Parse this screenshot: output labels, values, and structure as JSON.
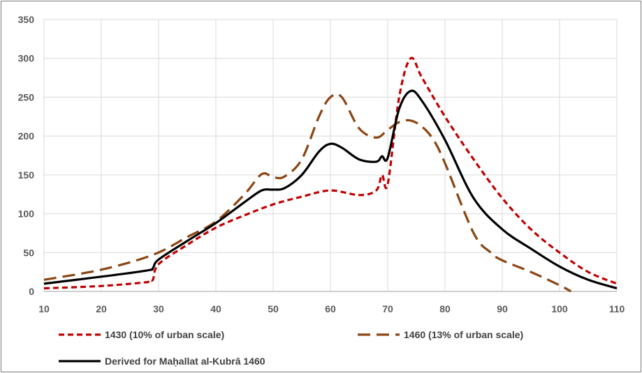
{
  "chart_data": {
    "type": "line",
    "title": "",
    "xlabel": "",
    "ylabel": "",
    "xlim": [
      10,
      110
    ],
    "ylim": [
      0,
      350
    ],
    "xticks": [
      "10",
      "20",
      "30",
      "40",
      "50",
      "60",
      "70",
      "80",
      "90",
      "100",
      "110"
    ],
    "yticks": [
      "0",
      "50",
      "100",
      "150",
      "200",
      "250",
      "300",
      "350"
    ],
    "grid": true,
    "legend_position": "bottom",
    "series": [
      {
        "name": "1430 (10% of urban scale)",
        "color": "#c00000",
        "dash": "short-dash",
        "x": [
          10,
          20,
          28,
          29,
          30,
          35,
          40,
          45,
          50,
          55,
          60,
          65,
          68,
          69,
          70,
          72,
          74,
          76,
          80,
          85,
          90,
          95,
          100,
          105,
          110
        ],
        "y": [
          4,
          7,
          12,
          15,
          35,
          60,
          82,
          98,
          112,
          122,
          130,
          124,
          130,
          150,
          138,
          250,
          300,
          275,
          225,
          170,
          120,
          80,
          50,
          25,
          10
        ]
      },
      {
        "name": "1460 (13% of urban scale)",
        "color": "#8b4513",
        "dash": "long-dash",
        "x": [
          10,
          20,
          29,
          35,
          40,
          45,
          48,
          50,
          52,
          55,
          58,
          60,
          62,
          65,
          68,
          70,
          72,
          74,
          76,
          78,
          80,
          85,
          88,
          90,
          95,
          100,
          102
        ],
        "y": [
          15,
          28,
          47,
          70,
          90,
          125,
          151,
          147,
          148,
          170,
          225,
          250,
          250,
          210,
          198,
          208,
          218,
          220,
          212,
          195,
          165,
          75,
          50,
          40,
          25,
          8,
          0
        ]
      },
      {
        "name": "Derived for Maḥallat al-Kubrā 1460",
        "color": "#000000",
        "dash": "solid",
        "x": [
          10,
          20,
          28,
          29,
          30,
          35,
          40,
          45,
          48,
          50,
          52,
          55,
          58,
          60,
          62,
          65,
          68,
          69,
          70,
          72,
          74,
          76,
          80,
          85,
          90,
          95,
          100,
          105,
          110
        ],
        "y": [
          10,
          19,
          27,
          30,
          41,
          65,
          88,
          115,
          130,
          131,
          133,
          150,
          180,
          190,
          185,
          170,
          167,
          174,
          172,
          235,
          258,
          245,
          195,
          120,
          80,
          55,
          32,
          15,
          4
        ]
      }
    ]
  }
}
